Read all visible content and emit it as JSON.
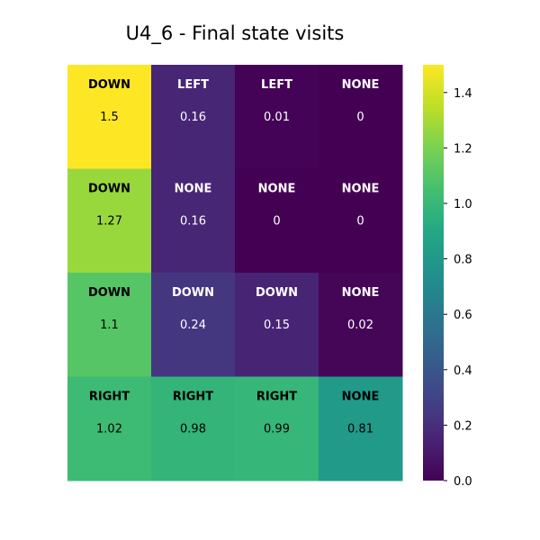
{
  "chart_data": {
    "type": "heatmap",
    "title": "U4_6 - Final state visits",
    "rows": 4,
    "cols": 4,
    "values": [
      [
        1.5,
        0.16,
        0.01,
        0
      ],
      [
        1.27,
        0.16,
        0,
        0
      ],
      [
        1.1,
        0.24,
        0.15,
        0.02
      ],
      [
        1.02,
        0.98,
        0.99,
        0.81
      ]
    ],
    "value_labels": [
      [
        "1.5",
        "0.16",
        "0.01",
        "0"
      ],
      [
        "1.27",
        "0.16",
        "0",
        "0"
      ],
      [
        "1.1",
        "0.24",
        "0.15",
        "0.02"
      ],
      [
        "1.02",
        "0.98",
        "0.99",
        "0.81"
      ]
    ],
    "actions": [
      [
        "DOWN",
        "LEFT",
        "LEFT",
        "NONE"
      ],
      [
        "DOWN",
        "NONE",
        "NONE",
        "NONE"
      ],
      [
        "DOWN",
        "DOWN",
        "DOWN",
        "NONE"
      ],
      [
        "RIGHT",
        "RIGHT",
        "RIGHT",
        "NONE"
      ]
    ],
    "colormap": "viridis",
    "vmin": 0,
    "vmax": 1.5,
    "colorbar": {
      "ticks": [
        0.0,
        0.2,
        0.4,
        0.6,
        0.8,
        1.0,
        1.2,
        1.4
      ],
      "tick_labels": [
        "0.0",
        "0.2",
        "0.4",
        "0.6",
        "0.8",
        "1.0",
        "1.2",
        "1.4"
      ]
    }
  }
}
